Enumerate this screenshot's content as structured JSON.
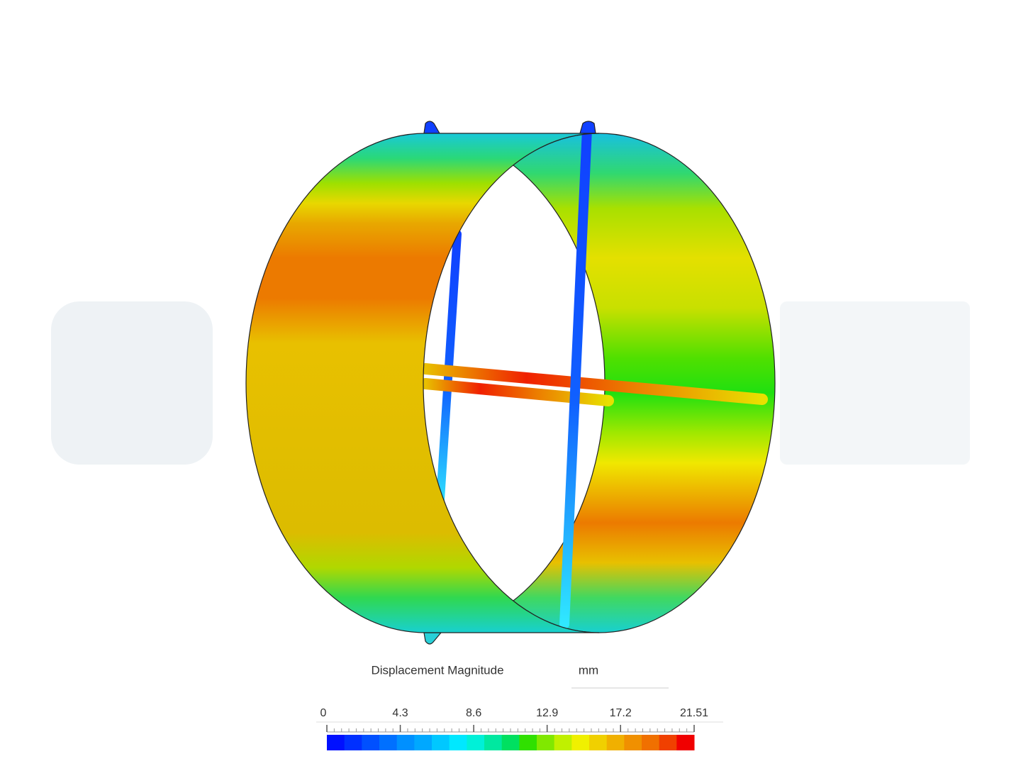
{
  "legend": {
    "title": "Displacement Magnitude",
    "unit": "mm",
    "ticks": [
      0,
      4.3,
      8.6,
      12.9,
      17.2,
      21.51
    ]
  }
}
